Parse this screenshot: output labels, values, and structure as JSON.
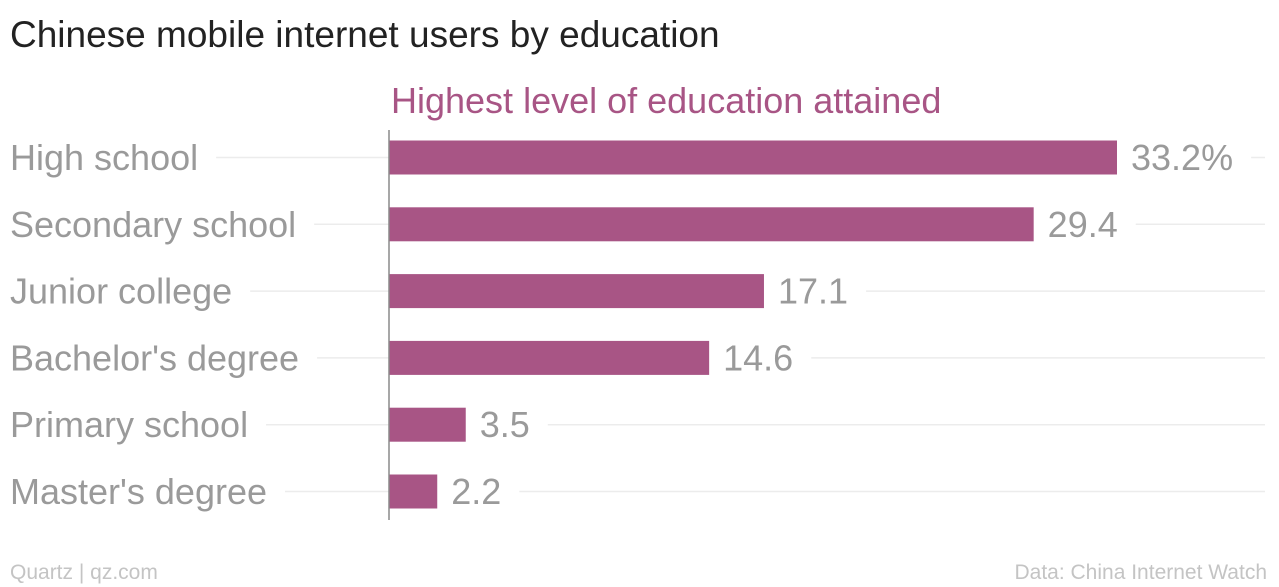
{
  "title": "Chinese mobile internet users by education",
  "subtitle": "Highest level of education attained",
  "footer": {
    "source_left": "Quartz | qz.com",
    "source_right": "Data: China Internet Watch"
  },
  "colors": {
    "bar": "#a85585",
    "subtitle": "#a85585",
    "category_label": "#9a9a9a",
    "value_label": "#9a9a9a",
    "gridline": "#ececec",
    "axis": "#8a8a8a"
  },
  "chart_data": {
    "type": "bar",
    "orientation": "horizontal",
    "title": "Chinese mobile internet users by education",
    "subtitle": "Highest level of education attained",
    "categories": [
      "High school",
      "Secondary school",
      "Junior college",
      "Bachelor's degree",
      "Primary school",
      "Master's degree"
    ],
    "values": [
      33.2,
      29.4,
      17.1,
      14.6,
      3.5,
      2.2
    ],
    "value_labels": [
      "33.2%",
      "29.4",
      "17.1",
      "14.6",
      "3.5",
      "2.2"
    ],
    "xlim": [
      0,
      33.2
    ],
    "grid": true
  }
}
